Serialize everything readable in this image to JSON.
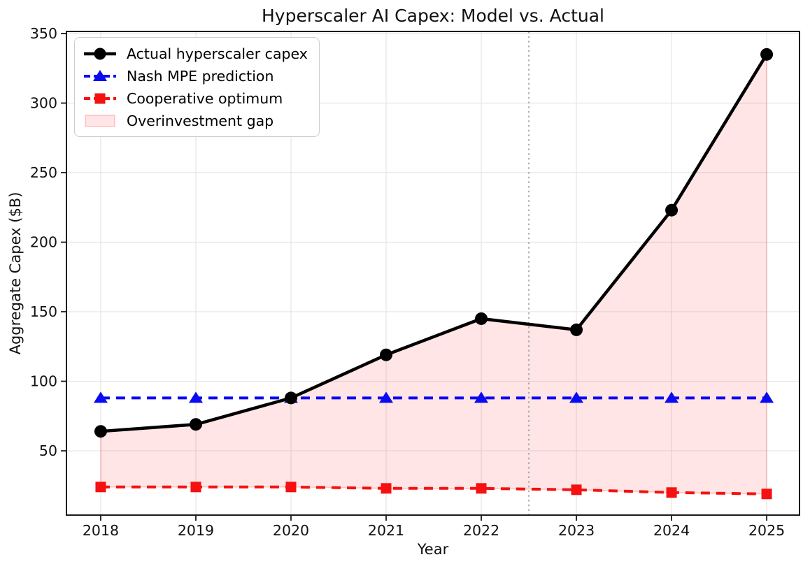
{
  "figure": {
    "kind": "matplotlib-style static chart"
  },
  "chart_data": {
    "type": "line",
    "title": "Hyperscaler AI Capex: Model vs. Actual",
    "xlabel": "Year",
    "ylabel": "Aggregate Capex ($B)",
    "x": [
      2018,
      2019,
      2020,
      2021,
      2022,
      2023,
      2024,
      2025
    ],
    "xtick_labels": [
      "2018",
      "2019",
      "2020",
      "2021",
      "2022",
      "2023",
      "2024",
      "2025"
    ],
    "yticks": [
      50,
      100,
      150,
      200,
      250,
      300,
      350
    ],
    "xlim": [
      2017.64,
      2025.345
    ],
    "ylim": [
      3.8,
      351.5
    ],
    "grid": true,
    "legend_position": "upper left",
    "series": [
      {
        "name": "Actual hyperscaler capex",
        "color": "#000000",
        "line_style": "solid",
        "marker": "circle",
        "values": [
          64,
          69,
          88,
          119,
          145,
          137,
          223,
          335
        ]
      },
      {
        "name": "Nash MPE prediction",
        "color": "#0b0bf2",
        "line_style": "dashed",
        "marker": "triangle",
        "values": [
          88,
          88,
          88,
          88,
          88,
          88,
          88,
          88
        ]
      },
      {
        "name": "Cooperative optimum",
        "color": "#f51111",
        "line_style": "dashed",
        "marker": "square",
        "values": [
          24,
          24,
          24,
          23,
          23,
          22,
          20,
          19
        ]
      }
    ],
    "area": {
      "name": "Overinvestment gap",
      "fill_color": "#ff0000",
      "fill_opacity": 0.1,
      "edge_opacity": 0.2,
      "between": [
        "Actual hyperscaler capex",
        "Cooperative optimum"
      ]
    },
    "vline": {
      "x": 2022.5,
      "color": "#9a9a9a",
      "style": "dotted"
    },
    "colors": {
      "grid": "#e5e5e5",
      "spine": "#1a1a1a",
      "tick_text": "#111111"
    }
  }
}
